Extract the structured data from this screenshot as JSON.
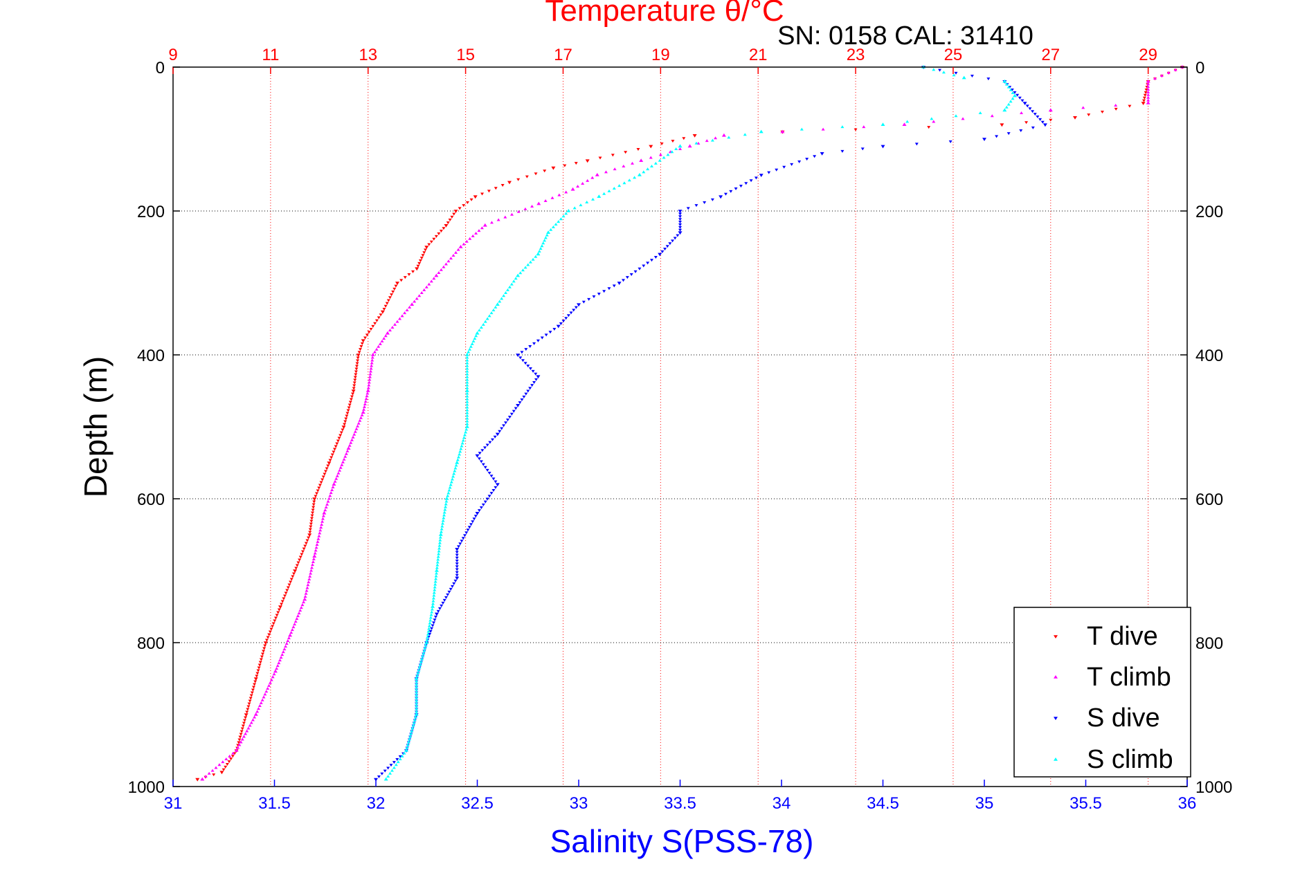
{
  "chart_data": {
    "type": "scatter",
    "title": "Temperature θ/°C",
    "annotation": "SN: 0158  CAL: 31410",
    "xlabel": "Salinity S(PSS-78)",
    "ylabel": "Depth (m)",
    "x_salinity": {
      "lim": [
        31,
        36
      ],
      "ticks": [
        31,
        31.5,
        32,
        32.5,
        33,
        33.5,
        34,
        34.5,
        35,
        35.5,
        36
      ],
      "ticklabels": [
        "31",
        "31.5",
        "32",
        "32.5",
        "33",
        "33.5",
        "34",
        "34.5",
        "35",
        "35.5",
        "36"
      ]
    },
    "x_temperature": {
      "lim": [
        9,
        29.8
      ],
      "ticks": [
        9,
        11,
        13,
        15,
        17,
        19,
        21,
        23,
        25,
        27,
        29
      ],
      "ticklabels": [
        "9",
        "11",
        "13",
        "15",
        "17",
        "19",
        "21",
        "23",
        "25",
        "27",
        "29"
      ]
    },
    "y_depth": {
      "lim": [
        0,
        1000
      ],
      "reversed": true,
      "ticks": [
        0,
        200,
        400,
        600,
        800,
        1000
      ],
      "ticklabels": [
        "0",
        "200",
        "400",
        "600",
        "800",
        "1000"
      ]
    },
    "grid": true,
    "legend_position": "bottom-right",
    "series": [
      {
        "name": "T dive",
        "axis": "temperature",
        "color": "#ff0000",
        "marker": "triangle-down",
        "points": [
          [
            29.7,
            0
          ],
          [
            29.0,
            20
          ],
          [
            28.9,
            50
          ],
          [
            27.5,
            70
          ],
          [
            26.0,
            80
          ],
          [
            21.5,
            90
          ],
          [
            19.7,
            95
          ],
          [
            18.8,
            110
          ],
          [
            17.5,
            130
          ],
          [
            16.8,
            140
          ],
          [
            15.9,
            160
          ],
          [
            15.2,
            180
          ],
          [
            14.8,
            200
          ],
          [
            14.6,
            220
          ],
          [
            14.2,
            250
          ],
          [
            14.0,
            280
          ],
          [
            13.6,
            300
          ],
          [
            13.3,
            340
          ],
          [
            12.9,
            380
          ],
          [
            12.8,
            400
          ],
          [
            12.7,
            450
          ],
          [
            12.5,
            500
          ],
          [
            12.2,
            550
          ],
          [
            11.9,
            600
          ],
          [
            11.8,
            650
          ],
          [
            11.5,
            700
          ],
          [
            11.2,
            750
          ],
          [
            10.9,
            800
          ],
          [
            10.7,
            850
          ],
          [
            10.5,
            900
          ],
          [
            10.3,
            950
          ],
          [
            10.0,
            980
          ],
          [
            9.5,
            990
          ]
        ]
      },
      {
        "name": "T climb",
        "axis": "temperature",
        "color": "#ff00ff",
        "marker": "triangle-up",
        "points": [
          [
            29.7,
            0
          ],
          [
            29.0,
            20
          ],
          [
            29.0,
            50
          ],
          [
            27.0,
            60
          ],
          [
            24.0,
            80
          ],
          [
            21.5,
            90
          ],
          [
            20.3,
            95
          ],
          [
            19.6,
            110
          ],
          [
            18.6,
            130
          ],
          [
            17.7,
            150
          ],
          [
            17.2,
            170
          ],
          [
            16.5,
            190
          ],
          [
            15.4,
            220
          ],
          [
            14.9,
            250
          ],
          [
            14.4,
            290
          ],
          [
            13.9,
            330
          ],
          [
            13.4,
            370
          ],
          [
            13.1,
            400
          ],
          [
            13.0,
            450
          ],
          [
            12.9,
            480
          ],
          [
            12.6,
            530
          ],
          [
            12.3,
            580
          ],
          [
            12.1,
            620
          ],
          [
            11.9,
            680
          ],
          [
            11.7,
            740
          ],
          [
            11.4,
            790
          ],
          [
            11.1,
            840
          ],
          [
            10.7,
            900
          ],
          [
            10.3,
            950
          ],
          [
            9.6,
            990
          ]
        ]
      },
      {
        "name": "S dive",
        "axis": "salinity",
        "color": "#0000ff",
        "marker": "triangle-down",
        "points": [
          [
            34.7,
            0
          ],
          [
            35.1,
            20
          ],
          [
            35.2,
            50
          ],
          [
            35.3,
            80
          ],
          [
            35.0,
            100
          ],
          [
            34.5,
            110
          ],
          [
            34.2,
            120
          ],
          [
            33.9,
            150
          ],
          [
            33.7,
            180
          ],
          [
            33.5,
            200
          ],
          [
            33.5,
            230
          ],
          [
            33.4,
            260
          ],
          [
            33.2,
            300
          ],
          [
            33.0,
            330
          ],
          [
            32.9,
            360
          ],
          [
            32.7,
            400
          ],
          [
            32.8,
            430
          ],
          [
            32.7,
            470
          ],
          [
            32.6,
            510
          ],
          [
            32.5,
            540
          ],
          [
            32.6,
            580
          ],
          [
            32.5,
            620
          ],
          [
            32.4,
            670
          ],
          [
            32.4,
            710
          ],
          [
            32.3,
            760
          ],
          [
            32.25,
            800
          ],
          [
            32.2,
            850
          ],
          [
            32.2,
            900
          ],
          [
            32.15,
            950
          ],
          [
            32.0,
            990
          ]
        ]
      },
      {
        "name": "S climb",
        "axis": "salinity",
        "color": "#00ffff",
        "marker": "triangle-up",
        "points": [
          [
            34.7,
            0
          ],
          [
            34.9,
            15
          ],
          [
            35.1,
            20
          ],
          [
            35.15,
            40
          ],
          [
            35.1,
            60
          ],
          [
            34.5,
            80
          ],
          [
            33.9,
            90
          ],
          [
            33.5,
            110
          ],
          [
            33.3,
            150
          ],
          [
            33.1,
            180
          ],
          [
            32.95,
            200
          ],
          [
            32.85,
            230
          ],
          [
            32.8,
            260
          ],
          [
            32.7,
            290
          ],
          [
            32.6,
            330
          ],
          [
            32.5,
            370
          ],
          [
            32.45,
            400
          ],
          [
            32.45,
            450
          ],
          [
            32.45,
            500
          ],
          [
            32.4,
            550
          ],
          [
            32.35,
            600
          ],
          [
            32.32,
            650
          ],
          [
            32.3,
            700
          ],
          [
            32.28,
            750
          ],
          [
            32.25,
            800
          ],
          [
            32.2,
            850
          ],
          [
            32.2,
            900
          ],
          [
            32.15,
            950
          ],
          [
            32.05,
            990
          ]
        ]
      }
    ]
  }
}
